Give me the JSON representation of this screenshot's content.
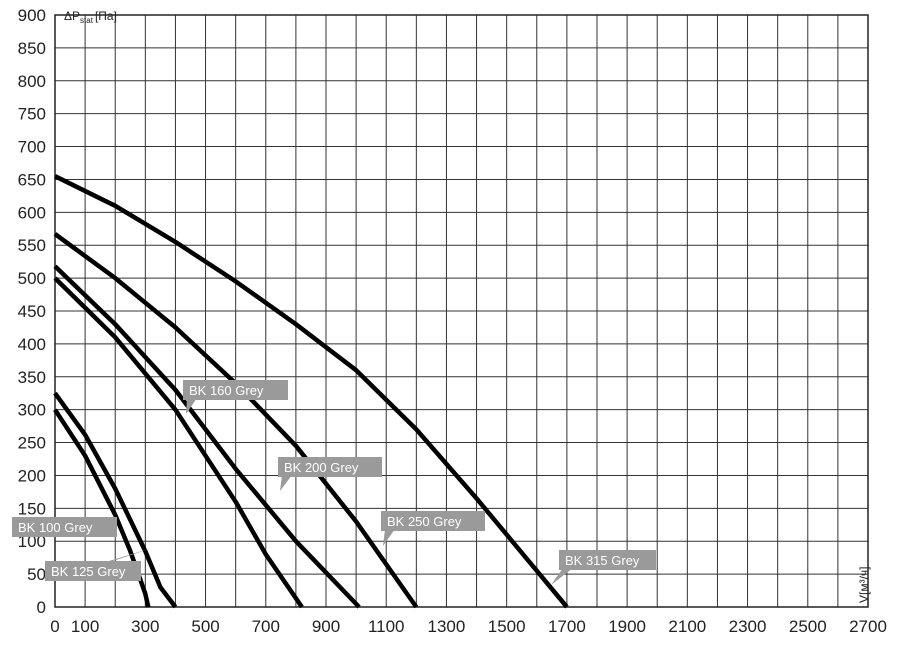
{
  "chart_data": {
    "type": "line",
    "ylabel": {
      "main": "ΔP",
      "sub": "stat",
      "unit": "[Па]"
    },
    "xlabel": "V[м³/ч]",
    "xlim": [
      0,
      2700
    ],
    "ylim": [
      0,
      900
    ],
    "xticks": [
      0,
      100,
      {
        "value": 200,
        "label": null
      },
      300,
      {
        "value": 400,
        "label": null
      },
      500,
      {
        "value": 600,
        "label": null
      },
      700,
      {
        "value": 800,
        "label": null
      },
      900,
      {
        "value": 1000,
        "label": null
      },
      1100,
      {
        "value": 1200,
        "label": null
      },
      1300,
      {
        "value": 1400,
        "label": null
      },
      1500,
      {
        "value": 1600,
        "label": null
      },
      1700,
      {
        "value": 1800,
        "label": null
      },
      1900,
      {
        "value": 2000,
        "label": null
      },
      2100,
      {
        "value": 2200,
        "label": null
      },
      2300,
      {
        "value": 2400,
        "label": null
      },
      2500,
      {
        "value": 2600,
        "label": null
      },
      2700
    ],
    "yticks": [
      0,
      50,
      100,
      150,
      200,
      250,
      300,
      350,
      400,
      450,
      500,
      550,
      600,
      650,
      700,
      750,
      800,
      850,
      900
    ],
    "grid": true,
    "series": [
      {
        "name": "BK 100 Grey",
        "color": "#000000",
        "x": [
          0,
          100,
          200,
          250,
          300,
          310
        ],
        "values": [
          300,
          230,
          140,
          85,
          20,
          0
        ]
      },
      {
        "name": "BK 125 Grey",
        "color": "#000000",
        "x": [
          0,
          100,
          200,
          300,
          350,
          400
        ],
        "values": [
          325,
          262,
          180,
          85,
          30,
          0
        ]
      },
      {
        "name": "BK 160 Grey",
        "color": "#000000",
        "x": [
          0,
          200,
          400,
          600,
          700,
          820
        ],
        "values": [
          500,
          410,
          300,
          160,
          80,
          0
        ]
      },
      {
        "name": "BK 200 Grey",
        "color": "#000000",
        "x": [
          0,
          200,
          400,
          600,
          800,
          1010
        ],
        "values": [
          518,
          430,
          330,
          210,
          100,
          0
        ]
      },
      {
        "name": "BK 250 Grey",
        "color": "#000000",
        "x": [
          0,
          200,
          400,
          600,
          800,
          1000,
          1200
        ],
        "values": [
          567,
          500,
          425,
          340,
          245,
          130,
          0
        ]
      },
      {
        "name": "BK 315 Grey",
        "color": "#000000",
        "x": [
          0,
          200,
          400,
          600,
          800,
          1000,
          1200,
          1400,
          1600,
          1700
        ],
        "values": [
          655,
          610,
          555,
          495,
          430,
          360,
          270,
          165,
          55,
          0
        ]
      }
    ]
  }
}
